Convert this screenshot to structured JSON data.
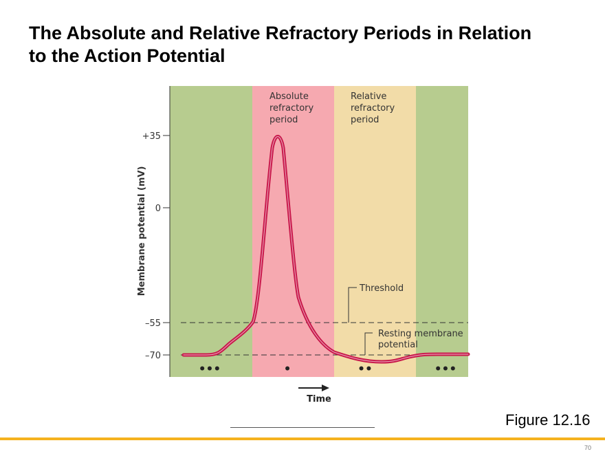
{
  "title": {
    "line1": "The Absolute and Relative Refractory Periods in Relation",
    "line2": "to the Action Potential"
  },
  "figure_label": "Figure 12.16",
  "page_number": "70",
  "diagram": {
    "y_axis_label": "Membrane potential (mV)",
    "x_axis_label": "Time",
    "y_ticks": [
      "+35",
      "0",
      "–55",
      "–70"
    ],
    "regions": [
      {
        "label_lines": [],
        "color": "#b7cc8f"
      },
      {
        "label_lines": [
          "Absolute",
          "refractory",
          "period"
        ],
        "color": "#f6a9b0"
      },
      {
        "label_lines": [
          "Relative",
          "refractory",
          "period"
        ],
        "color": "#f2dca8"
      },
      {
        "label_lines": [],
        "color": "#b7cc8f"
      }
    ],
    "threshold_label": "Threshold",
    "resting_label_lines": [
      "Resting membrane",
      "potential"
    ],
    "stage_markers": [
      "•••",
      "•",
      "••",
      "•••"
    ],
    "curve_color": "#c8174a"
  }
}
